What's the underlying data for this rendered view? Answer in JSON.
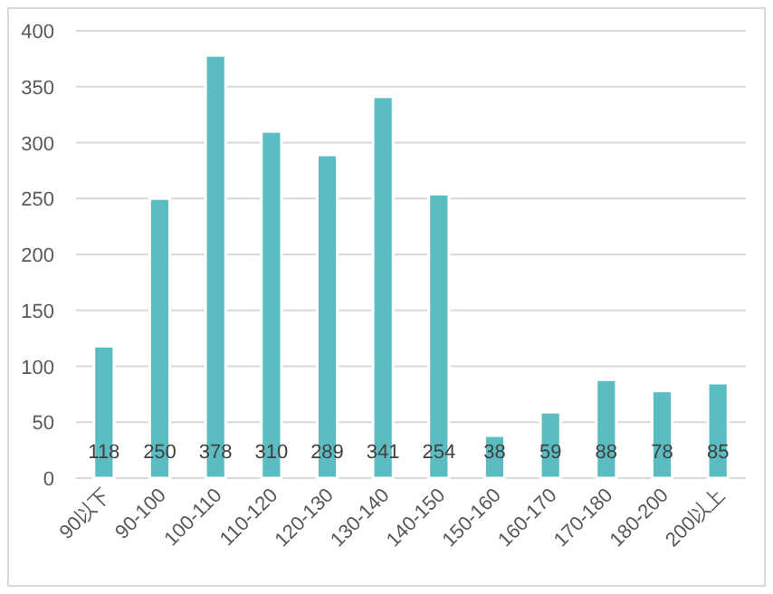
{
  "chart_data": {
    "type": "bar",
    "categories": [
      "90以下",
      "90-100",
      "100-110",
      "110-120",
      "120-130",
      "130-140",
      "140-150",
      "150-160",
      "160-170",
      "170-180",
      "180-200",
      "200以上"
    ],
    "values": [
      118,
      250,
      378,
      310,
      289,
      341,
      254,
      38,
      59,
      88,
      78,
      85
    ],
    "color": "#5bbdc1",
    "ylim": [
      0,
      400
    ],
    "yticks": [
      0,
      50,
      100,
      150,
      200,
      250,
      300,
      350,
      400
    ],
    "grid": "y",
    "data_labels": true
  }
}
